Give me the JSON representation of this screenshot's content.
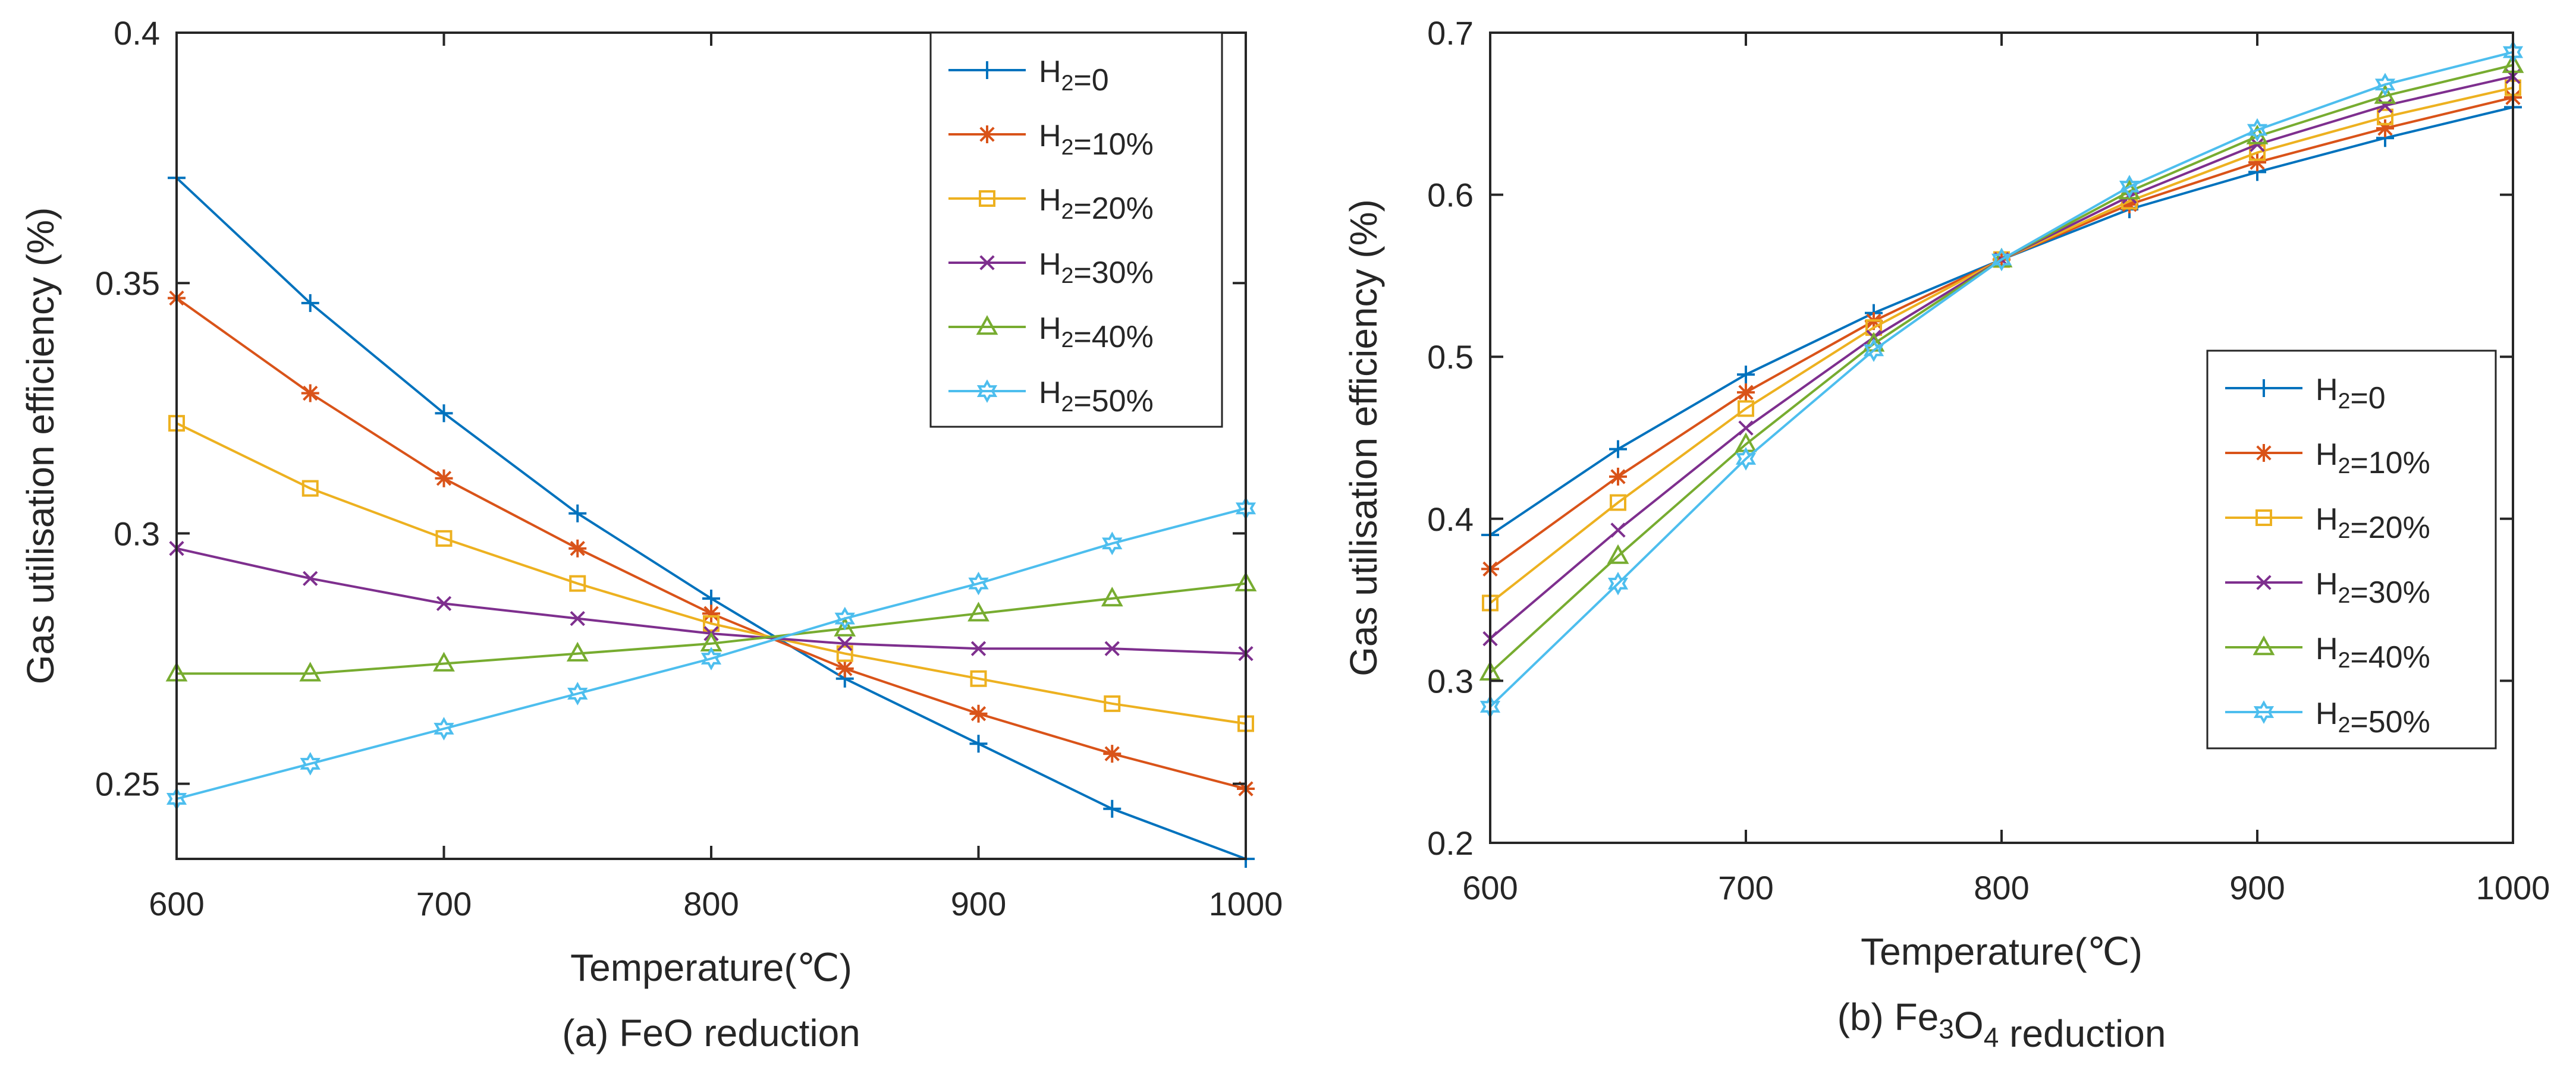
{
  "chart_data": [
    {
      "type": "line",
      "caption": "(a) FeO reduction",
      "xlabel": "Temperature(℃)",
      "ylabel": "Gas utilisation efficiency (%)",
      "x": [
        600,
        650,
        700,
        750,
        800,
        850,
        900,
        950,
        1000
      ],
      "xlim": [
        600,
        1000
      ],
      "ylim": [
        0.235,
        0.4
      ],
      "xticks": [
        "600",
        "700",
        "800",
        "900",
        "1000"
      ],
      "yticks": [
        "0.25",
        "0.3",
        "0.35",
        "0.4"
      ],
      "grid": false,
      "legend_position": "top-right",
      "series": [
        {
          "name": "H2=0",
          "color": "#0072BD",
          "marker": "plus",
          "values": [
            0.371,
            0.346,
            0.324,
            0.304,
            0.287,
            0.271,
            0.258,
            0.245,
            0.235
          ]
        },
        {
          "name": "H2=10%",
          "color": "#D95319",
          "marker": "asterisk",
          "values": [
            0.347,
            0.328,
            0.311,
            0.297,
            0.284,
            0.273,
            0.264,
            0.256,
            0.249
          ]
        },
        {
          "name": "H2=20%",
          "color": "#EDB120",
          "marker": "square",
          "values": [
            0.322,
            0.309,
            0.299,
            0.29,
            0.282,
            0.276,
            0.271,
            0.266,
            0.262
          ]
        },
        {
          "name": "H2=30%",
          "color": "#7E2F8E",
          "marker": "x",
          "values": [
            0.297,
            0.291,
            0.286,
            0.283,
            0.28,
            0.278,
            0.277,
            0.277,
            0.276
          ]
        },
        {
          "name": "H2=40%",
          "color": "#77AC30",
          "marker": "triangle",
          "values": [
            0.272,
            0.272,
            0.274,
            0.276,
            0.278,
            0.281,
            0.284,
            0.287,
            0.29
          ]
        },
        {
          "name": "H2=50%",
          "color": "#4DBEEE",
          "marker": "hexagram",
          "values": [
            0.247,
            0.254,
            0.261,
            0.268,
            0.275,
            0.283,
            0.29,
            0.298,
            0.305
          ]
        }
      ]
    },
    {
      "type": "line",
      "caption": "(b) Fe3O4 reduction",
      "xlabel": "Temperature(℃)",
      "ylabel": "Gas utilisation efficiency (%)",
      "x": [
        600,
        650,
        700,
        750,
        800,
        850,
        900,
        950,
        1000
      ],
      "xlim": [
        600,
        1000
      ],
      "ylim": [
        0.2,
        0.7
      ],
      "xticks": [
        "600",
        "700",
        "800",
        "900",
        "1000"
      ],
      "yticks": [
        "0.2",
        "0.3",
        "0.4",
        "0.5",
        "0.6",
        "0.7"
      ],
      "grid": false,
      "legend_position": "bottom-right",
      "series": [
        {
          "name": "H2=0",
          "color": "#0072BD",
          "marker": "plus",
          "values": [
            0.39,
            0.443,
            0.489,
            0.527,
            0.56,
            0.591,
            0.614,
            0.635,
            0.654
          ]
        },
        {
          "name": "H2=10%",
          "color": "#D95319",
          "marker": "asterisk",
          "values": [
            0.369,
            0.426,
            0.478,
            0.522,
            0.56,
            0.594,
            0.62,
            0.641,
            0.66
          ]
        },
        {
          "name": "H2=20%",
          "color": "#EDB120",
          "marker": "square",
          "values": [
            0.348,
            0.41,
            0.468,
            0.518,
            0.56,
            0.596,
            0.626,
            0.648,
            0.666
          ]
        },
        {
          "name": "H2=30%",
          "color": "#7E2F8E",
          "marker": "x",
          "values": [
            0.326,
            0.393,
            0.456,
            0.512,
            0.56,
            0.599,
            0.631,
            0.655,
            0.673
          ]
        },
        {
          "name": "H2=40%",
          "color": "#77AC30",
          "marker": "triangle",
          "values": [
            0.305,
            0.377,
            0.446,
            0.508,
            0.56,
            0.602,
            0.636,
            0.661,
            0.68
          ]
        },
        {
          "name": "H2=50%",
          "color": "#4DBEEE",
          "marker": "hexagram",
          "values": [
            0.284,
            0.36,
            0.437,
            0.504,
            0.56,
            0.605,
            0.64,
            0.668,
            0.688
          ]
        }
      ]
    }
  ]
}
